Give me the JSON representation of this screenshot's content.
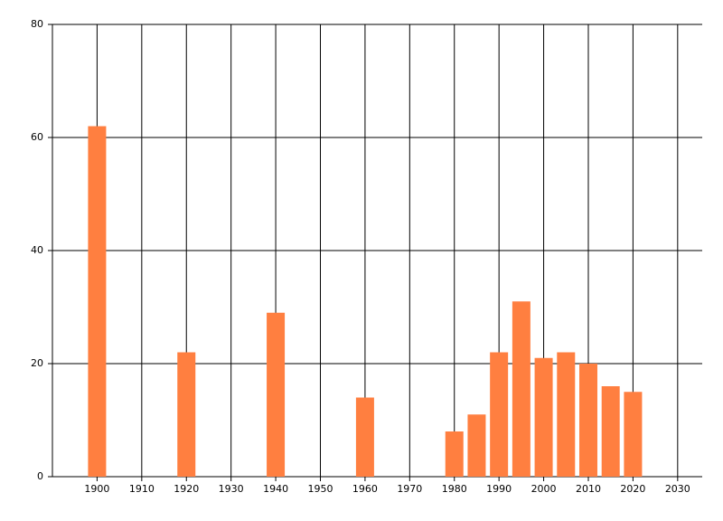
{
  "chart_data": {
    "type": "bar",
    "x": [
      1900,
      1920,
      1940,
      1960,
      1980,
      1985,
      1990,
      1995,
      2000,
      2005,
      2010,
      2015,
      2020
    ],
    "values": [
      62,
      22,
      29,
      14,
      8,
      11,
      22,
      31,
      21,
      22,
      20,
      16,
      15
    ],
    "color": "#ff7f40",
    "xlim": [
      1890,
      2035.5
    ],
    "xticks": [
      1900,
      1910,
      1920,
      1930,
      1940,
      1950,
      1960,
      1970,
      1980,
      1990,
      2000,
      2010,
      2020,
      2030
    ],
    "ylim": [
      0,
      80
    ],
    "yticks": [
      0,
      20,
      40,
      60,
      80
    ],
    "grid": true
  }
}
